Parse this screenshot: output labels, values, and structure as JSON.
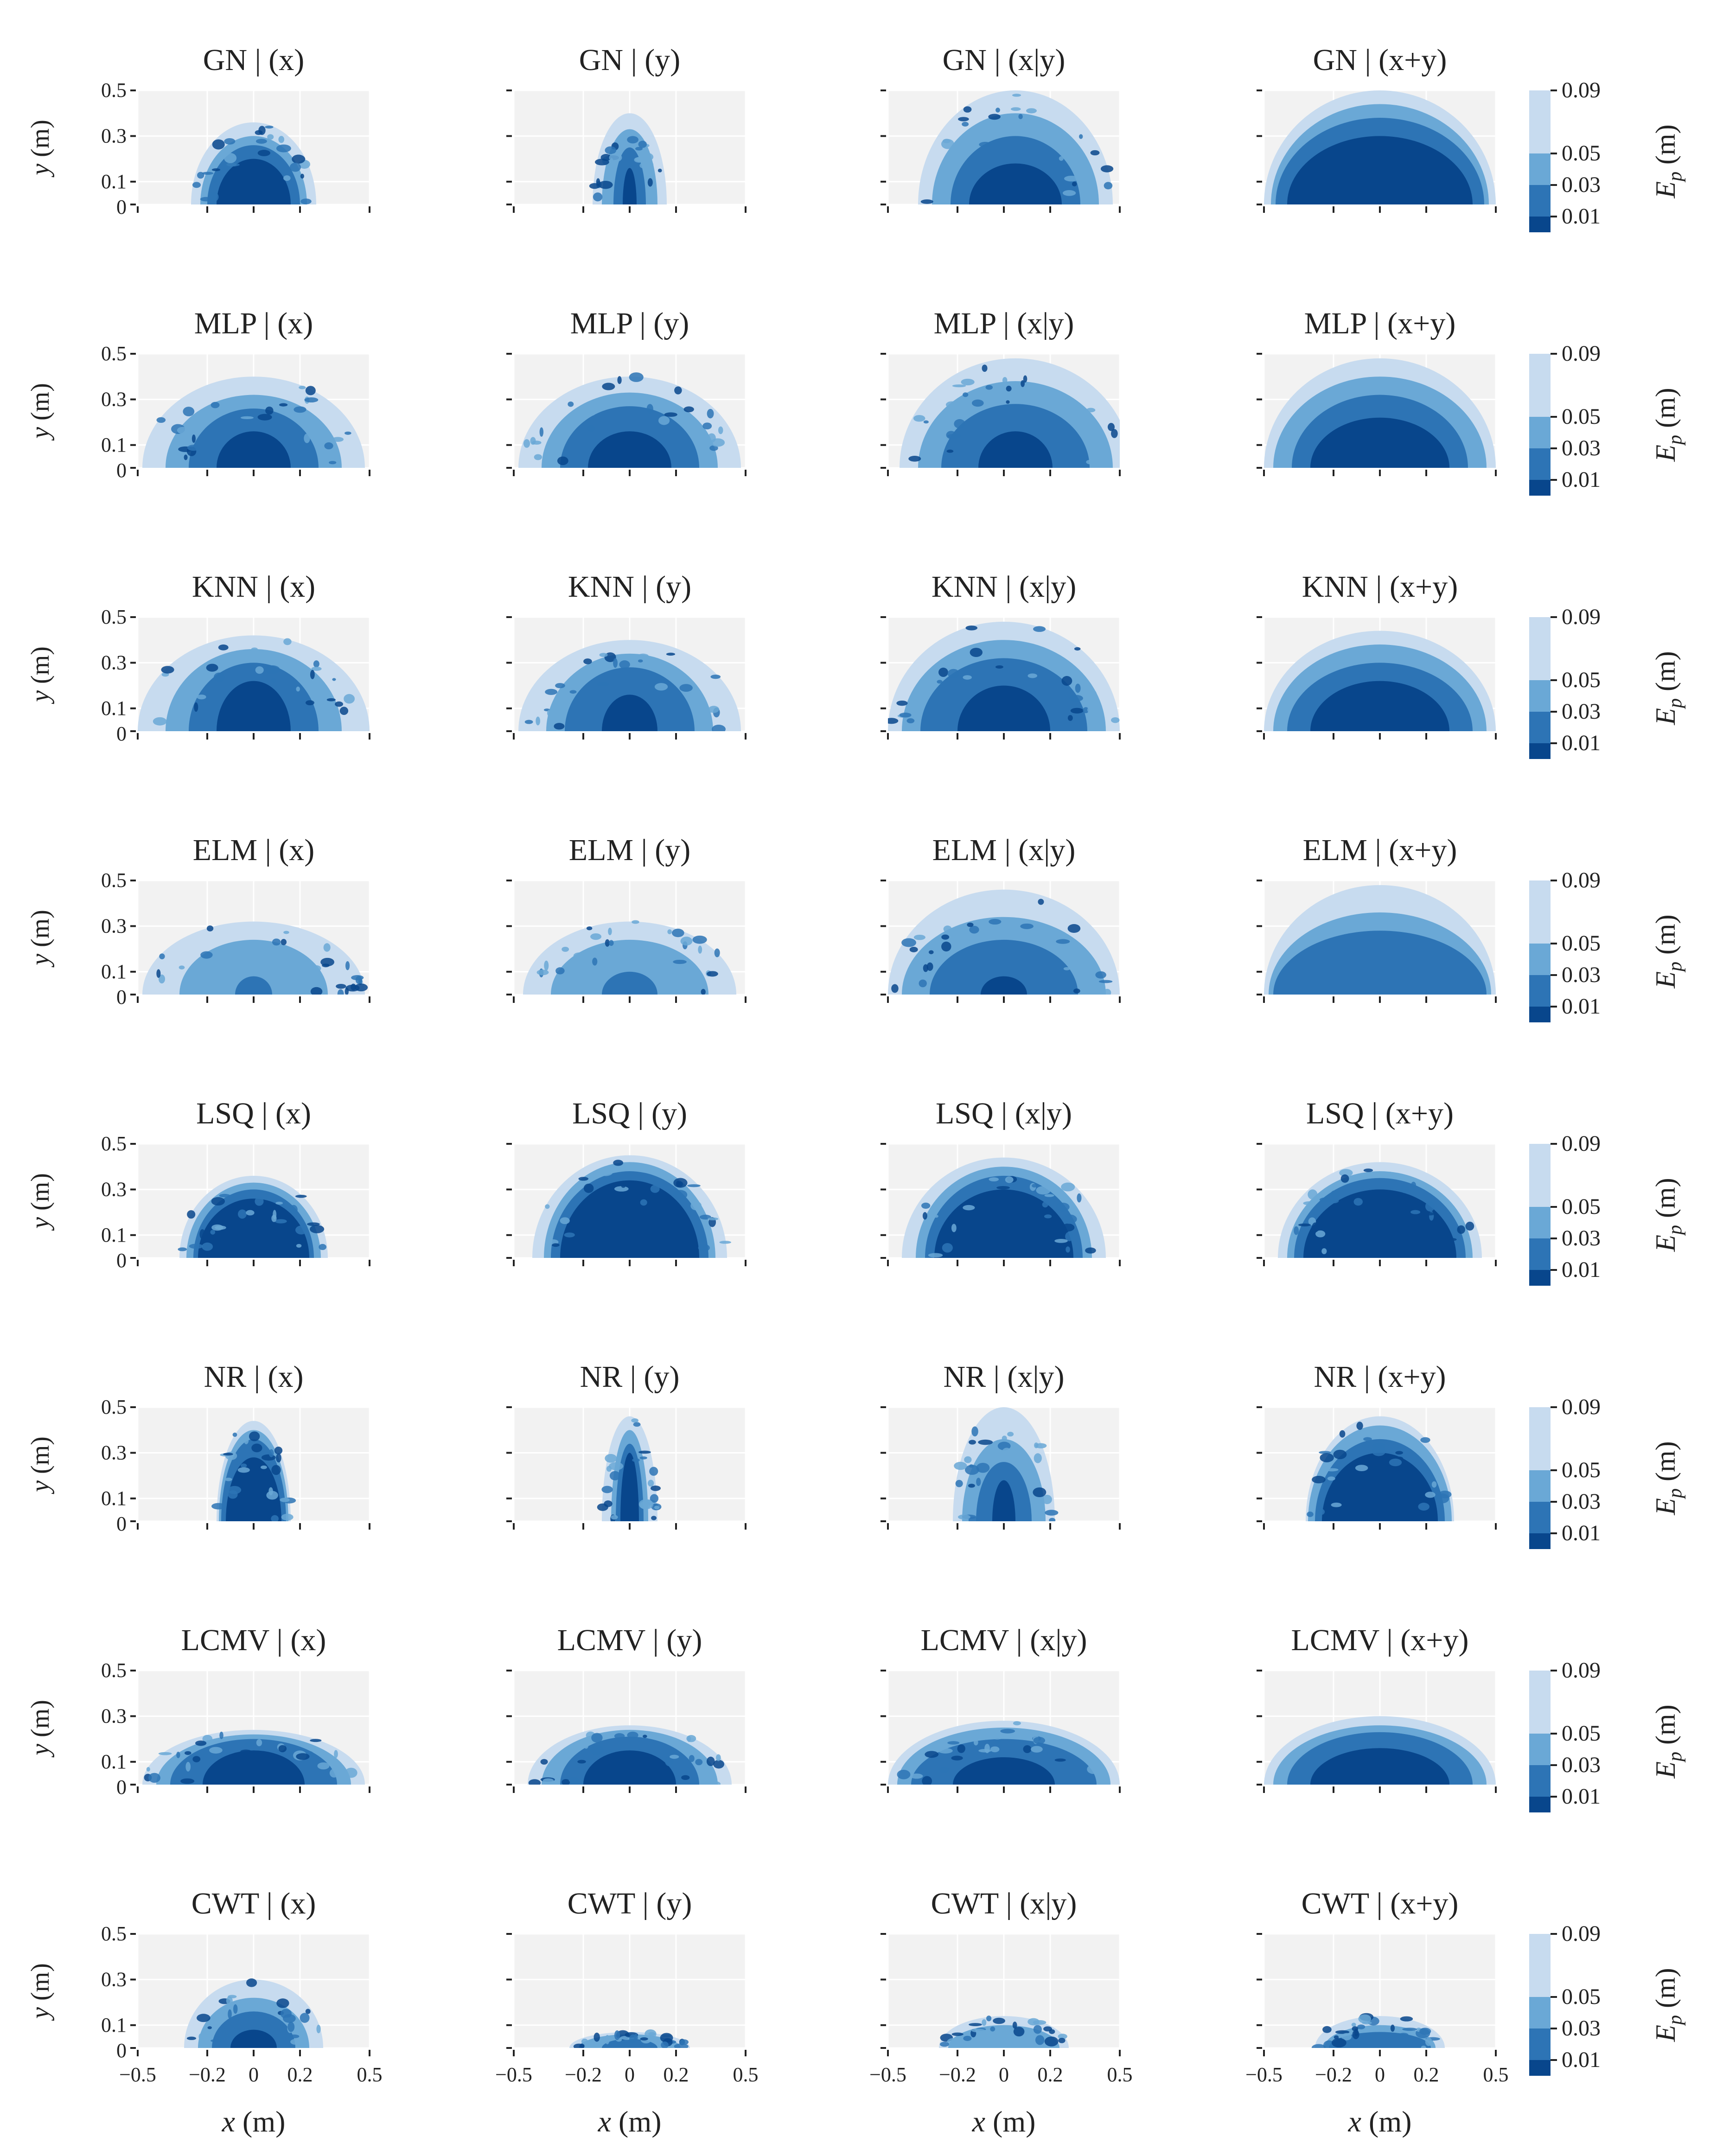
{
  "figure": {
    "colorbar_label": "E_p (m)",
    "colorbar_ticks": [
      "0.09",
      "0.05",
      "0.03",
      "0.01"
    ],
    "colorbar_levels": [
      0.01,
      0.03,
      0.05,
      0.09
    ],
    "colors": {
      "level_0_01": "#08468c",
      "level_0_03": "#2d74b5",
      "level_0_05": "#6aa8d6",
      "level_0_09": "#c7dbef",
      "panel_bg": "#f2f2f2",
      "grid": "#ffffff"
    }
  },
  "chart_data": {
    "type": "heatmap",
    "xlabel": "x (m)",
    "ylabel": "y (m)",
    "xlim": [
      -0.5,
      0.5
    ],
    "ylim": [
      0,
      0.5
    ],
    "xticks": [
      "−0.5",
      "−0.2",
      "0",
      "0.2",
      "0.5"
    ],
    "yticks": [
      "0.5",
      "0.3",
      "0.1",
      "0"
    ],
    "xtick_values": [
      -0.5,
      -0.2,
      0,
      0.2,
      0.5
    ],
    "ytick_values": [
      0.5,
      0.3,
      0.1,
      0
    ],
    "columns": [
      "(x)",
      "(y)",
      "(x|y)",
      "(x+y)"
    ],
    "methods": [
      {
        "name": "GN",
        "titles": [
          "GN | (x)",
          "GN | (y)",
          "GN | (x|y)",
          "GN | (x+y)"
        ],
        "panels": [
          {
            "cx": 0.0,
            "r": [
              0.16,
              0.2,
              0.23,
              0.27
            ],
            "h": [
              0.2,
              0.26,
              0.3,
              0.36
            ],
            "noise": true
          },
          {
            "cx": 0.0,
            "r": [
              0.03,
              0.07,
              0.12,
              0.16
            ],
            "h": [
              0.16,
              0.25,
              0.33,
              0.4
            ],
            "noise": true
          },
          {
            "cx": 0.05,
            "r": [
              0.2,
              0.28,
              0.36,
              0.42
            ],
            "h": [
              0.18,
              0.3,
              0.4,
              0.5
            ],
            "noise": true
          },
          {
            "cx": 0.0,
            "r": [
              0.4,
              0.45,
              0.47,
              0.5
            ],
            "h": [
              0.3,
              0.38,
              0.44,
              0.5
            ],
            "noise": false
          }
        ]
      },
      {
        "name": "MLP",
        "titles": [
          "MLP | (x)",
          "MLP | (y)",
          "MLP | (x|y)",
          "MLP | (x+y)"
        ],
        "panels": [
          {
            "cx": 0.0,
            "r": [
              0.16,
              0.28,
              0.38,
              0.48
            ],
            "h": [
              0.16,
              0.26,
              0.32,
              0.4
            ],
            "noise": true
          },
          {
            "cx": 0.0,
            "r": [
              0.18,
              0.3,
              0.38,
              0.48
            ],
            "h": [
              0.16,
              0.27,
              0.33,
              0.4
            ],
            "noise": true
          },
          {
            "cx": 0.05,
            "r": [
              0.16,
              0.32,
              0.42,
              0.5
            ],
            "h": [
              0.16,
              0.28,
              0.38,
              0.48
            ],
            "noise": true
          },
          {
            "cx": 0.0,
            "r": [
              0.3,
              0.38,
              0.46,
              0.5
            ],
            "h": [
              0.22,
              0.32,
              0.4,
              0.48
            ],
            "noise": false
          }
        ]
      },
      {
        "name": "KNN",
        "titles": [
          "KNN | (x)",
          "KNN | (y)",
          "KNN | (x|y)",
          "KNN | (x+y)"
        ],
        "panels": [
          {
            "cx": 0.0,
            "r": [
              0.16,
              0.28,
              0.38,
              0.5
            ],
            "h": [
              0.22,
              0.3,
              0.36,
              0.42
            ],
            "noise": true
          },
          {
            "cx": 0.0,
            "r": [
              0.12,
              0.28,
              0.36,
              0.48
            ],
            "h": [
              0.16,
              0.28,
              0.34,
              0.4
            ],
            "noise": true
          },
          {
            "cx": 0.0,
            "r": [
              0.2,
              0.36,
              0.44,
              0.5
            ],
            "h": [
              0.2,
              0.32,
              0.4,
              0.48
            ],
            "noise": true
          },
          {
            "cx": 0.0,
            "r": [
              0.3,
              0.4,
              0.46,
              0.5
            ],
            "h": [
              0.22,
              0.3,
              0.38,
              0.44
            ],
            "noise": false
          }
        ]
      },
      {
        "name": "ELM",
        "titles": [
          "ELM | (x)",
          "ELM | (y)",
          "ELM | (x|y)",
          "ELM | (x+y)"
        ],
        "panels": [
          {
            "cx": 0.0,
            "r": [
              0.0,
              0.08,
              0.32,
              0.48
            ],
            "h": [
              0.0,
              0.08,
              0.24,
              0.32
            ],
            "noise": true
          },
          {
            "cx": 0.0,
            "r": [
              0.0,
              0.12,
              0.34,
              0.46
            ],
            "h": [
              0.0,
              0.1,
              0.24,
              0.32
            ],
            "noise": true
          },
          {
            "cx": 0.0,
            "r": [
              0.1,
              0.32,
              0.44,
              0.5
            ],
            "h": [
              0.08,
              0.24,
              0.34,
              0.46
            ],
            "noise": true
          },
          {
            "cx": 0.0,
            "r": [
              0.0,
              0.46,
              0.48,
              0.5
            ],
            "h": [
              0.0,
              0.28,
              0.36,
              0.48
            ],
            "noise": false
          }
        ]
      },
      {
        "name": "LSQ",
        "titles": [
          "LSQ | (x)",
          "LSQ | (y)",
          "LSQ | (x|y)",
          "LSQ | (x+y)"
        ],
        "panels": [
          {
            "cx": 0.0,
            "r": [
              0.24,
              0.26,
              0.29,
              0.32
            ],
            "h": [
              0.26,
              0.3,
              0.33,
              0.36
            ],
            "noise": true
          },
          {
            "cx": 0.0,
            "r": [
              0.3,
              0.34,
              0.37,
              0.42
            ],
            "h": [
              0.34,
              0.38,
              0.42,
              0.45
            ],
            "noise": true
          },
          {
            "cx": 0.0,
            "r": [
              0.3,
              0.34,
              0.38,
              0.44
            ],
            "h": [
              0.3,
              0.36,
              0.4,
              0.44
            ],
            "noise": true
          },
          {
            "cx": 0.0,
            "r": [
              0.33,
              0.37,
              0.4,
              0.44
            ],
            "h": [
              0.3,
              0.35,
              0.38,
              0.42
            ],
            "noise": true
          }
        ]
      },
      {
        "name": "NR",
        "titles": [
          "NR | (x)",
          "NR | (y)",
          "NR | (x|y)",
          "NR | (x+y)"
        ],
        "panels": [
          {
            "cx": 0.0,
            "r": [
              0.12,
              0.14,
              0.15,
              0.16
            ],
            "h": [
              0.28,
              0.36,
              0.4,
              0.44
            ],
            "noise": true
          },
          {
            "cx": 0.0,
            "r": [
              0.04,
              0.06,
              0.08,
              0.12
            ],
            "h": [
              0.3,
              0.34,
              0.4,
              0.46
            ],
            "noise": true
          },
          {
            "cx": 0.0,
            "r": [
              0.05,
              0.12,
              0.18,
              0.22
            ],
            "h": [
              0.18,
              0.26,
              0.36,
              0.5
            ],
            "noise": true
          },
          {
            "cx": 0.0,
            "r": [
              0.25,
              0.28,
              0.31,
              0.32
            ],
            "h": [
              0.3,
              0.36,
              0.42,
              0.46
            ],
            "noise": true
          }
        ]
      },
      {
        "name": "LCMV",
        "titles": [
          "LCMV | (x)",
          "LCMV | (y)",
          "LCMV | (x|y)",
          "LCMV | (x+y)"
        ],
        "panels": [
          {
            "cx": 0.0,
            "r": [
              0.22,
              0.36,
              0.42,
              0.48
            ],
            "h": [
              0.15,
              0.2,
              0.22,
              0.24
            ],
            "noise": true
          },
          {
            "cx": 0.0,
            "r": [
              0.2,
              0.3,
              0.38,
              0.44
            ],
            "h": [
              0.15,
              0.21,
              0.24,
              0.26
            ],
            "noise": true
          },
          {
            "cx": 0.0,
            "r": [
              0.22,
              0.4,
              0.46,
              0.5
            ],
            "h": [
              0.12,
              0.2,
              0.25,
              0.28
            ],
            "noise": true
          },
          {
            "cx": 0.0,
            "r": [
              0.3,
              0.4,
              0.46,
              0.5
            ],
            "h": [
              0.16,
              0.23,
              0.26,
              0.3
            ],
            "noise": false
          }
        ]
      },
      {
        "name": "CWT",
        "titles": [
          "CWT | (x)",
          "CWT | (y)",
          "CWT | (x|y)",
          "CWT | (x+y)"
        ],
        "panels": [
          {
            "cx": 0.0,
            "r": [
              0.1,
              0.18,
              0.24,
              0.3
            ],
            "h": [
              0.08,
              0.16,
              0.22,
              0.3
            ],
            "noise": true
          },
          {
            "cx": 0.0,
            "r": [
              0.0,
              0.12,
              0.22,
              0.26
            ],
            "h": [
              0.0,
              0.04,
              0.06,
              0.07
            ],
            "noise": true
          },
          {
            "cx": 0.0,
            "r": [
              0.0,
              0.0,
              0.24,
              0.28
            ],
            "h": [
              0.0,
              0.0,
              0.1,
              0.14
            ],
            "noise": true
          },
          {
            "cx": 0.0,
            "r": [
              0.0,
              0.22,
              0.24,
              0.28
            ],
            "h": [
              0.0,
              0.07,
              0.1,
              0.14
            ],
            "noise": true
          }
        ]
      }
    ]
  }
}
